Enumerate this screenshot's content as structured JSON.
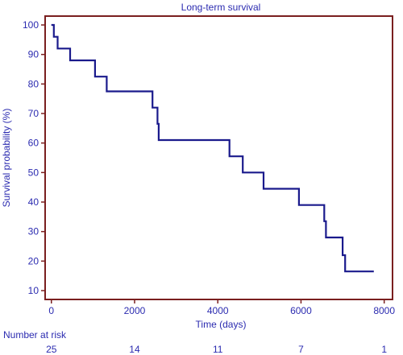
{
  "chart_data": {
    "type": "line",
    "title": "Long-term survival",
    "xlabel": "Time (days)",
    "ylabel": "Survival probability (%)",
    "xlim": [
      -150,
      8200
    ],
    "ylim": [
      7,
      103
    ],
    "x_ticks": [
      0,
      2000,
      4000,
      6000,
      8000
    ],
    "y_ticks": [
      10,
      20,
      30,
      40,
      50,
      60,
      70,
      80,
      90,
      100
    ],
    "grid": false,
    "step": true,
    "series": [
      {
        "color": "#1a1a8c",
        "points": [
          [
            0,
            100
          ],
          [
            60,
            100
          ],
          [
            60,
            96
          ],
          [
            150,
            96
          ],
          [
            150,
            92
          ],
          [
            450,
            92
          ],
          [
            450,
            88
          ],
          [
            1050,
            88
          ],
          [
            1050,
            82.5
          ],
          [
            1330,
            82.5
          ],
          [
            1330,
            77.5
          ],
          [
            2430,
            77.5
          ],
          [
            2430,
            72
          ],
          [
            2550,
            72
          ],
          [
            2550,
            66.5
          ],
          [
            2580,
            66.5
          ],
          [
            2580,
            61
          ],
          [
            4280,
            61
          ],
          [
            4280,
            55.5
          ],
          [
            4600,
            55.5
          ],
          [
            4600,
            50
          ],
          [
            5100,
            50
          ],
          [
            5100,
            44.5
          ],
          [
            5950,
            44.5
          ],
          [
            5950,
            39
          ],
          [
            6560,
            39
          ],
          [
            6560,
            33.5
          ],
          [
            6600,
            33.5
          ],
          [
            6600,
            28
          ],
          [
            7000,
            28
          ],
          [
            7000,
            22
          ],
          [
            7060,
            22
          ],
          [
            7060,
            16.5
          ],
          [
            7750,
            16.5
          ]
        ]
      }
    ],
    "risk_table": {
      "label": "Number at risk",
      "times": [
        0,
        2000,
        4000,
        6000,
        8000
      ],
      "counts": [
        "25",
        "14",
        "11",
        "7",
        "1"
      ]
    },
    "colors": {
      "frame": "#7a1f1f",
      "curve": "#1a1a8c",
      "text": "#2b2bb0"
    }
  }
}
